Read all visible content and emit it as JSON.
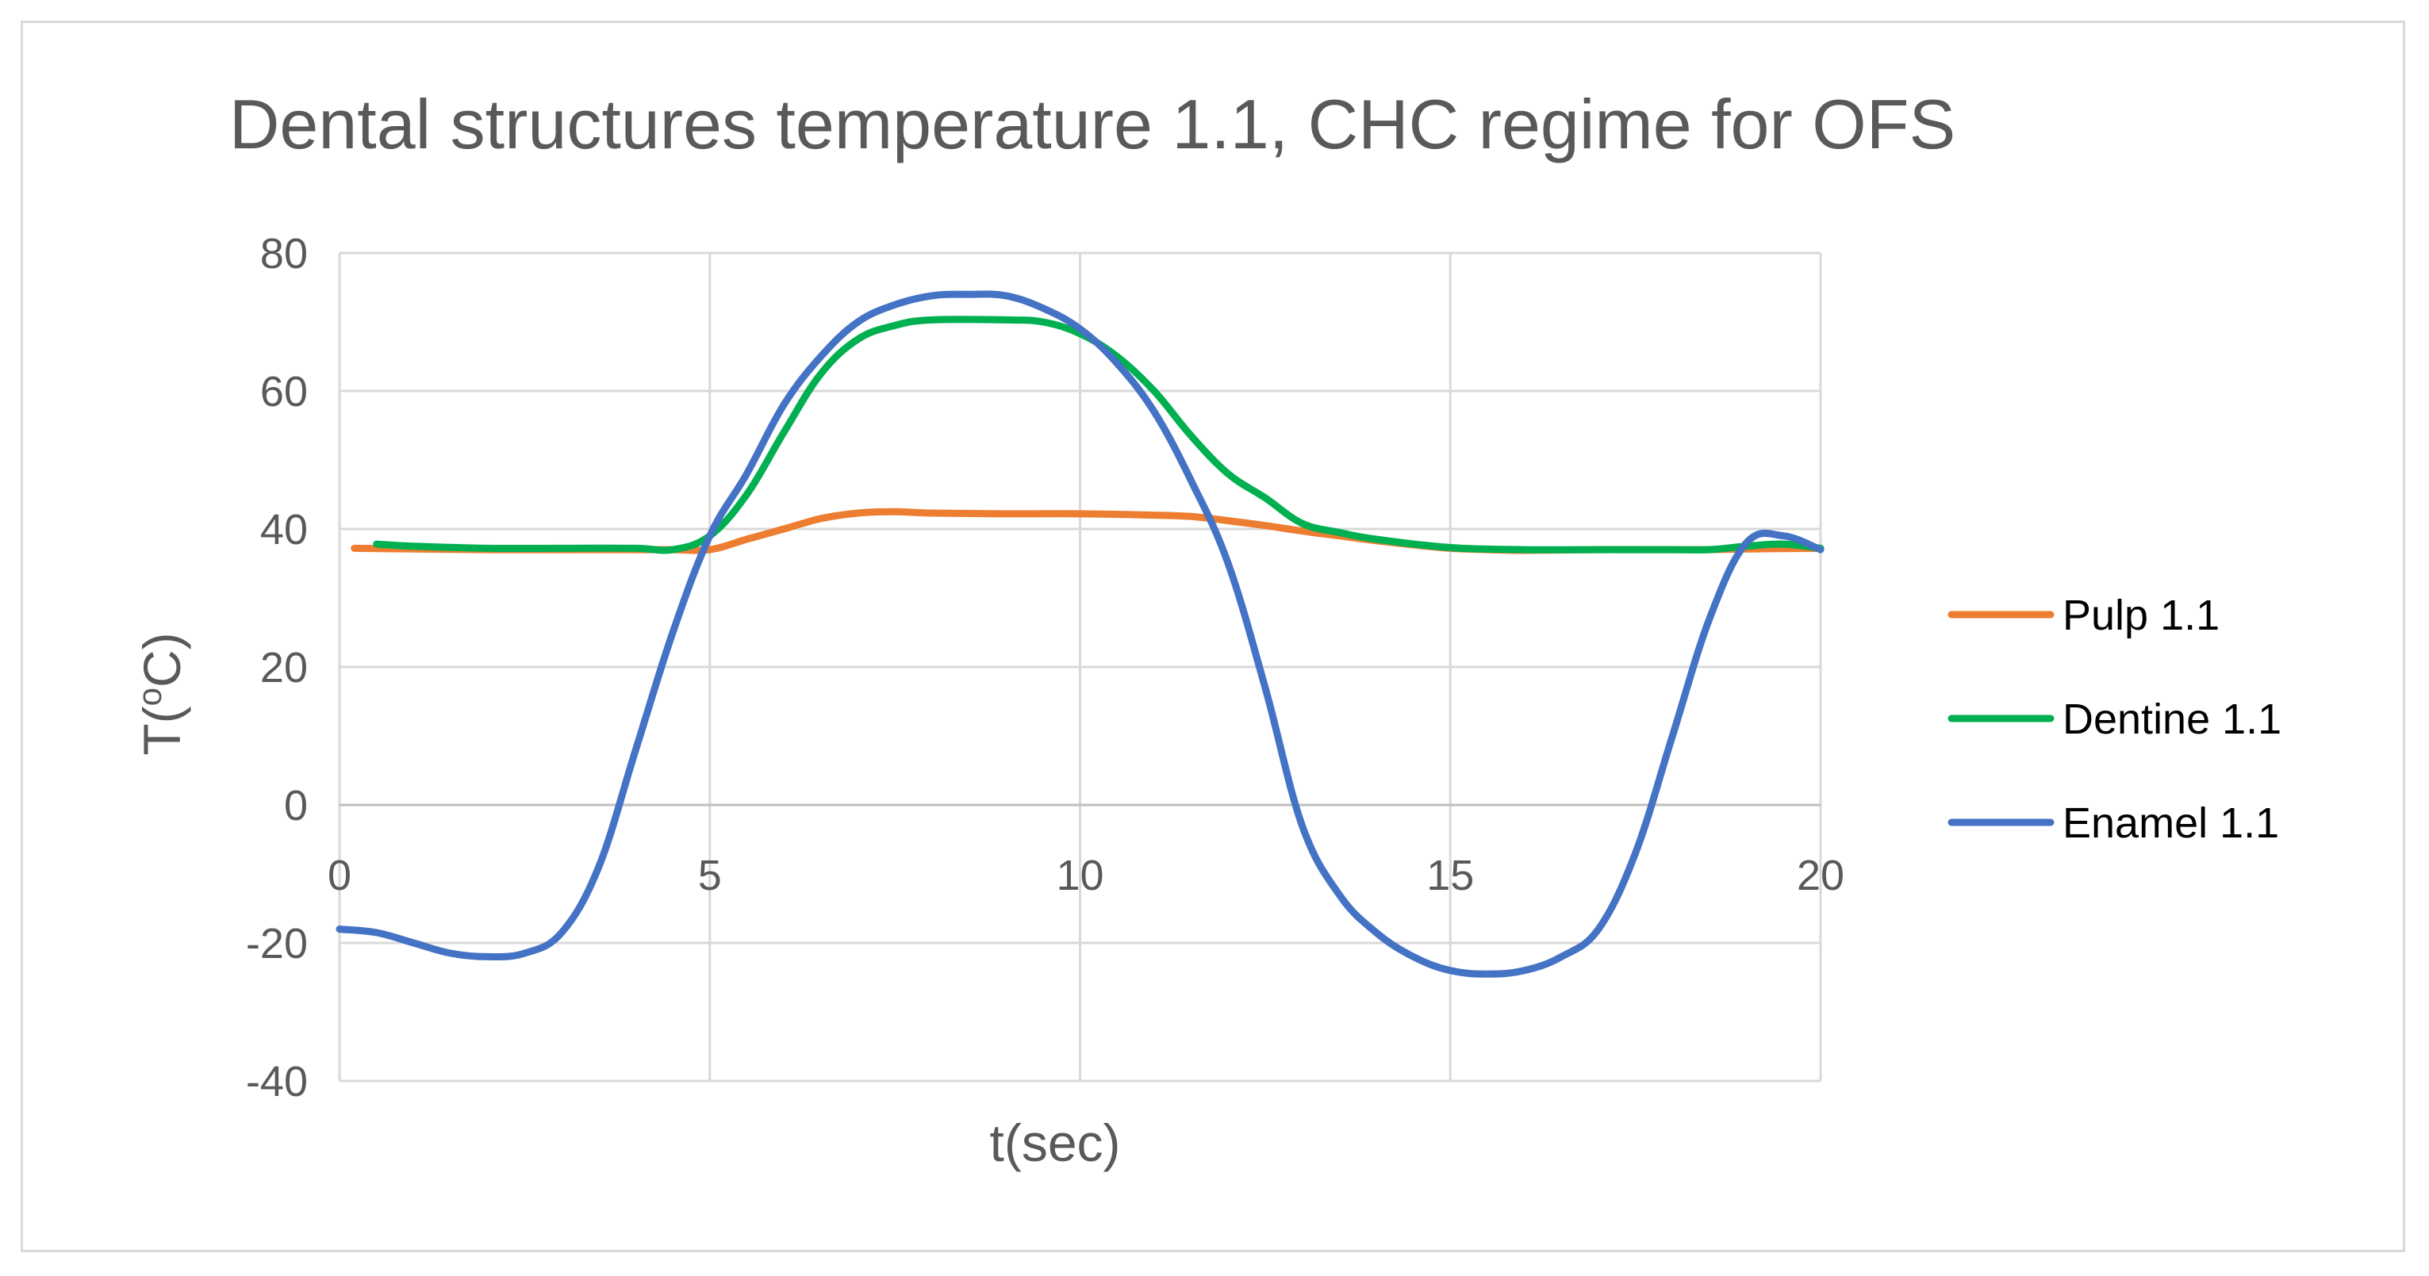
{
  "chart_data": {
    "type": "line",
    "title": "Dental structures temperature 1.1, CHC regime for OFS",
    "xlabel": "t(sec)",
    "ylabel_prefix": "T(",
    "ylabel_sup": "o",
    "ylabel_suffix": "C)",
    "xlim": [
      0,
      20
    ],
    "ylim": [
      -40,
      80
    ],
    "x_ticks": [
      0,
      5,
      10,
      15,
      20
    ],
    "y_ticks": [
      -40,
      -20,
      0,
      20,
      40,
      60,
      80
    ],
    "grid": true,
    "legend_position": "right",
    "series": [
      {
        "name": "Pulp 1.1",
        "color": "#ED7D31",
        "points": [
          [
            0.2,
            37.2
          ],
          [
            1,
            37.1
          ],
          [
            2,
            37.0
          ],
          [
            3,
            37.0
          ],
          [
            4,
            37.0
          ],
          [
            4.5,
            37.0
          ],
          [
            5,
            37.0
          ],
          [
            5.5,
            38.5
          ],
          [
            6,
            40.0
          ],
          [
            6.5,
            41.5
          ],
          [
            7,
            42.3
          ],
          [
            7.5,
            42.5
          ],
          [
            8,
            42.3
          ],
          [
            9,
            42.2
          ],
          [
            10,
            42.2
          ],
          [
            11,
            42.0
          ],
          [
            11.5,
            41.8
          ],
          [
            12,
            41.2
          ],
          [
            12.5,
            40.5
          ],
          [
            13,
            39.7
          ],
          [
            13.5,
            39.0
          ],
          [
            14,
            38.3
          ],
          [
            14.5,
            37.7
          ],
          [
            15,
            37.2
          ],
          [
            15.5,
            37.0
          ],
          [
            16,
            36.9
          ],
          [
            17,
            37.0
          ],
          [
            18,
            37.0
          ],
          [
            18.5,
            37.0
          ],
          [
            19,
            37.1
          ],
          [
            20,
            37.2
          ]
        ]
      },
      {
        "name": "Dentine 1.1",
        "color": "#00B050",
        "points": [
          [
            0.5,
            37.8
          ],
          [
            1,
            37.5
          ],
          [
            2,
            37.2
          ],
          [
            3,
            37.2
          ],
          [
            4,
            37.2
          ],
          [
            4.5,
            37.0
          ],
          [
            5,
            39.0
          ],
          [
            5.5,
            45.0
          ],
          [
            6,
            54.0
          ],
          [
            6.5,
            62.5
          ],
          [
            7,
            67.5
          ],
          [
            7.5,
            69.5
          ],
          [
            8,
            70.3
          ],
          [
            9,
            70.3
          ],
          [
            9.5,
            70.0
          ],
          [
            10,
            68.3
          ],
          [
            10.5,
            65.0
          ],
          [
            11,
            60.0
          ],
          [
            11.5,
            53.5
          ],
          [
            12,
            48.0
          ],
          [
            12.5,
            44.5
          ],
          [
            13,
            40.8
          ],
          [
            13.5,
            39.5
          ],
          [
            14,
            38.5
          ],
          [
            15,
            37.3
          ],
          [
            16,
            37.0
          ],
          [
            17,
            37.0
          ],
          [
            18,
            37.0
          ],
          [
            18.5,
            37.0
          ],
          [
            19,
            37.5
          ],
          [
            19.5,
            37.8
          ],
          [
            20,
            37.2
          ]
        ]
      },
      {
        "name": "Enamel 1.1",
        "color": "#4472C4",
        "points": [
          [
            0,
            -18.0
          ],
          [
            0.5,
            -18.5
          ],
          [
            1,
            -20.0
          ],
          [
            1.5,
            -21.5
          ],
          [
            2,
            -22.0
          ],
          [
            2.5,
            -21.5
          ],
          [
            3,
            -18.5
          ],
          [
            3.5,
            -9.0
          ],
          [
            4,
            8.0
          ],
          [
            4.5,
            25.0
          ],
          [
            5,
            39.0
          ],
          [
            5.5,
            48.0
          ],
          [
            6,
            58.0
          ],
          [
            6.5,
            65.0
          ],
          [
            7,
            70.0
          ],
          [
            7.5,
            72.5
          ],
          [
            8,
            73.8
          ],
          [
            8.5,
            74.0
          ],
          [
            9,
            73.8
          ],
          [
            9.5,
            72.0
          ],
          [
            10,
            69.0
          ],
          [
            10.5,
            64.0
          ],
          [
            11,
            57.0
          ],
          [
            11.5,
            47.0
          ],
          [
            12,
            35.0
          ],
          [
            12.5,
            17.0
          ],
          [
            13,
            -3.0
          ],
          [
            13.5,
            -13.0
          ],
          [
            14,
            -18.5
          ],
          [
            14.5,
            -22.0
          ],
          [
            15,
            -24.0
          ],
          [
            15.5,
            -24.5
          ],
          [
            16,
            -24.0
          ],
          [
            16.5,
            -22.0
          ],
          [
            17,
            -18.0
          ],
          [
            17.5,
            -7.0
          ],
          [
            18,
            10.0
          ],
          [
            18.5,
            27.0
          ],
          [
            19,
            38.0
          ],
          [
            19.5,
            39.0
          ],
          [
            20,
            37.0
          ]
        ]
      }
    ]
  }
}
